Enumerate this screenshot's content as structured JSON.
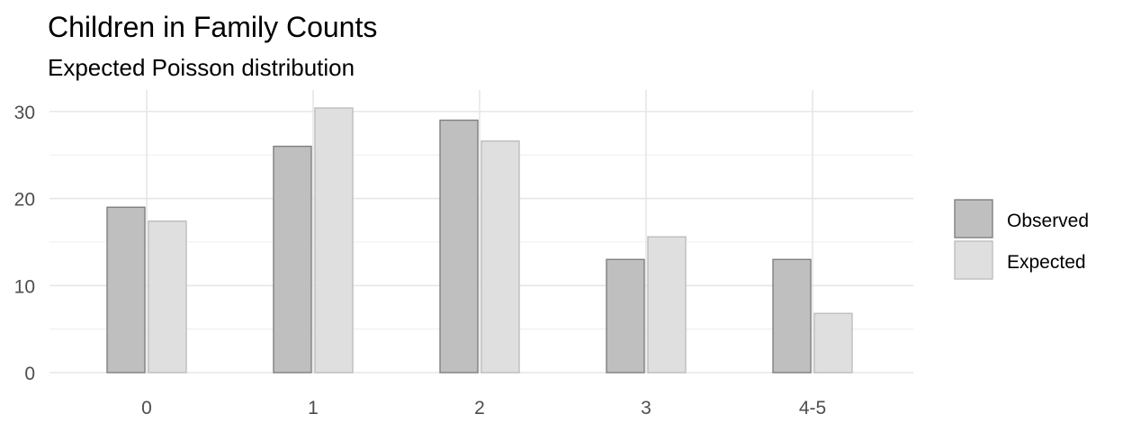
{
  "chart_data": {
    "type": "bar",
    "title": "Children in Family Counts",
    "subtitle": "Expected Poisson distribution",
    "xlabel": "",
    "ylabel": "",
    "categories": [
      "0",
      "1",
      "2",
      "3",
      "4-5"
    ],
    "series": [
      {
        "name": "Observed",
        "values": [
          19,
          26,
          29,
          13,
          13
        ],
        "fill": "#bfbfbf",
        "stroke": "#7f7f7f"
      },
      {
        "name": "Expected",
        "values": [
          17.4,
          30.4,
          26.6,
          15.6,
          6.8
        ],
        "fill": "#dfdfdf",
        "stroke": "#bdbdbd"
      }
    ],
    "ylim": [
      0,
      30.4
    ],
    "yticks": [
      0,
      10,
      20,
      30
    ],
    "grid": true,
    "legend_position": "right"
  }
}
